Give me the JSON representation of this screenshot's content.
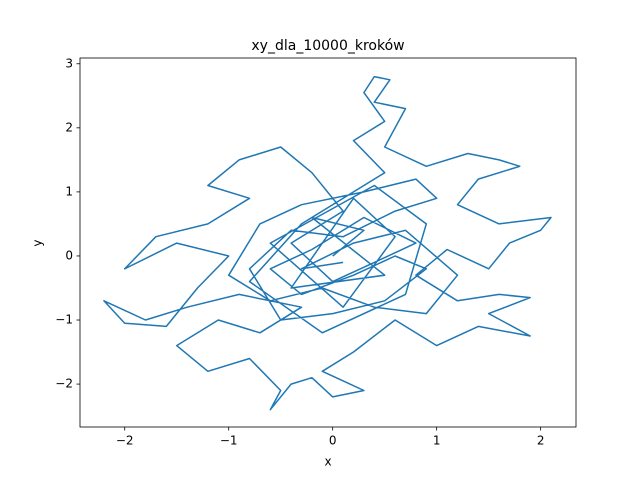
{
  "chart_data": {
    "type": "line",
    "title": "xy_dla_10000_kroków",
    "x_label": "x",
    "y_label": "y",
    "color": "#1f77b4",
    "x": [
      0,
      0.3,
      -0.2,
      0.5,
      -0.4,
      0.2,
      0.6,
      0.1,
      -0.6,
      0.4,
      0.9,
      0.7,
      -0.1,
      -0.8,
      -0.3,
      0.5,
      0.2,
      0.5,
      0.3,
      0.4,
      0.55,
      0.4,
      0.7,
      0.5,
      0.9,
      1.3,
      1.6,
      1.8,
      1.4,
      1.2,
      1.6,
      2.1,
      2.0,
      1.7,
      1.5,
      1.1,
      0.8,
      1.2,
      1.6,
      1.9,
      1.5,
      1.9,
      1.4,
      1.0,
      0.6,
      0.2,
      -0.1,
      0.3,
      0.0,
      -0.2,
      -0.4,
      -0.6,
      -0.5,
      -0.8,
      -1.2,
      -1.5,
      -1.1,
      -0.7,
      -0.3,
      -0.9,
      -1.4,
      -1.8,
      -2.2,
      -2.0,
      -1.6,
      -1.3,
      -1.0,
      -1.5,
      -2.0,
      -1.7,
      -1.2,
      -0.8,
      -1.2,
      -0.9,
      -0.5,
      -0.2,
      0.1,
      -0.4,
      0.0,
      0.4,
      0.8,
      0.3,
      -0.2,
      -0.6,
      -0.3,
      0.2,
      0.6,
      0.9,
      0.5,
      0.0,
      -0.5,
      -0.8,
      -0.4,
      0.1,
      0.6,
      1.0,
      0.8,
      0.3,
      -0.3,
      -0.7,
      -1.0,
      -0.6,
      -0.1,
      0.4,
      0.9,
      1.2,
      0.7,
      0.2,
      -0.3,
      0.1
    ],
    "values": [
      0,
      0.4,
      0.6,
      -0.3,
      -0.5,
      0.9,
      0.3,
      -0.8,
      0.2,
      1.1,
      0.5,
      -0.6,
      -1.2,
      -0.4,
      0.5,
      1.3,
      1.8,
      2.1,
      2.55,
      2.8,
      2.75,
      2.4,
      2.3,
      1.7,
      1.4,
      1.6,
      1.5,
      1.4,
      1.2,
      0.8,
      0.5,
      0.6,
      0.4,
      0.2,
      -0.2,
      0.1,
      -0.3,
      -0.7,
      -0.6,
      -0.65,
      -0.9,
      -1.25,
      -1.1,
      -1.4,
      -1.0,
      -1.5,
      -1.8,
      -2.1,
      -2.2,
      -1.9,
      -2.0,
      -2.4,
      -2.1,
      -1.6,
      -1.8,
      -1.4,
      -1.0,
      -1.2,
      -0.8,
      -0.6,
      -0.8,
      -1.0,
      -0.7,
      -1.05,
      -1.1,
      -0.5,
      0.0,
      0.2,
      -0.2,
      0.3,
      0.5,
      0.9,
      1.1,
      1.5,
      1.7,
      1.3,
      0.7,
      0.2,
      -0.4,
      -0.1,
      0.2,
      0.6,
      0.1,
      -0.2,
      -0.6,
      -0.3,
      0.0,
      -0.2,
      -0.7,
      -0.9,
      -1.0,
      -0.2,
      0.4,
      0.3,
      0.7,
      0.9,
      1.2,
      1.0,
      0.8,
      0.5,
      -0.3,
      -0.7,
      -0.5,
      -0.8,
      -0.9,
      -0.3,
      0.4,
      0.2,
      -0.2,
      -0.1
    ],
    "xlim": [
      -2.43,
      2.34
    ],
    "ylim": [
      -2.67,
      3.09
    ],
    "xticks": [
      {
        "value": -2,
        "label": "−2"
      },
      {
        "value": -1,
        "label": "−1"
      },
      0,
      1,
      2
    ],
    "yticks": [
      {
        "value": -2,
        "label": "−2"
      },
      {
        "value": -1,
        "label": "−1"
      },
      0,
      1,
      2,
      3
    ]
  }
}
